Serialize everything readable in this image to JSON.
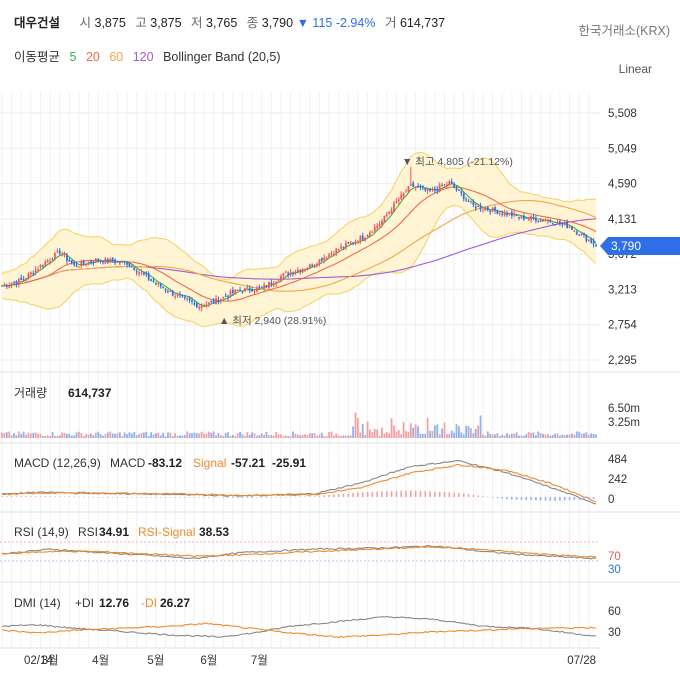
{
  "header": {
    "name": "대우건설",
    "open_label": "시",
    "open": "3,875",
    "high_label": "고",
    "high": "3,875",
    "low_label": "저",
    "low": "3,765",
    "close_label": "종",
    "close": "3,790",
    "change_arrow": "▼",
    "change": "115",
    "change_pct": "-2.94%",
    "volume_label": "거",
    "volume": "614,737",
    "exchange": "한국거래소(KRX)"
  },
  "ma_legend": {
    "title": "이동평균",
    "ma5": "5",
    "ma20": "20",
    "ma60": "60",
    "ma120": "120",
    "bollinger": "Bollinger Band (20,5)"
  },
  "scale_button": "Linear",
  "colors": {
    "up": "#f0575a",
    "down": "#2e6ee8",
    "ma5": "#35b246",
    "ma20": "#ef6b4a",
    "ma60": "#f5a44a",
    "ma120": "#a35bd6",
    "band_fill": "#fff5d4",
    "band_line": "#f5d46a",
    "price_tag": "#2e6ee8"
  },
  "price_axis": {
    "ticks": [
      "5,508",
      "5,049",
      "4,590",
      "4,131",
      "3,672",
      "3,213",
      "2,754",
      "2,295"
    ],
    "current": "3,790"
  },
  "annotations": {
    "high": "▼ 최고 4,805 (-21.12%)",
    "low": "▲ 최저 2,940 (28.91%)"
  },
  "volume_panel": {
    "label": "거래량",
    "value": "614,737",
    "ticks": [
      "6.50m",
      "3.25m"
    ]
  },
  "macd_panel": {
    "label": "MACD (12,26,9)",
    "macd_label": "MACD",
    "macd": "-83.12",
    "signal_label": "Signal",
    "signal": "-57.21",
    "hist": "-25.91",
    "ticks": [
      "484",
      "242",
      "0"
    ]
  },
  "rsi_panel": {
    "label": "RSI (14,9)",
    "rsi_label": "RSI",
    "rsi": "34.91",
    "signal_label": "RSI-Signal",
    "signal": "38.53",
    "ticks": [
      "70",
      "30"
    ]
  },
  "dmi_panel": {
    "label": "DMI (14)",
    "pdi_label": "+DI",
    "pdi": "12.76",
    "mdi_label": "-DI",
    "mdi": "26.27",
    "ticks": [
      "60",
      "30"
    ]
  },
  "x_axis": {
    "labels": [
      "02/14",
      "3월",
      "4월",
      "5월",
      "6월",
      "7월",
      "07/28"
    ]
  },
  "chart_data": {
    "type": "candlestick",
    "title": "대우건설",
    "x_labels": [
      "02/14",
      "3월",
      "4월",
      "5월",
      "6월",
      "7월",
      "07/28"
    ],
    "price_ylim": [
      2295,
      5508
    ],
    "price_anchors": [
      [
        0,
        3260
      ],
      [
        8,
        3330
      ],
      [
        16,
        3520
      ],
      [
        24,
        3700
      ],
      [
        30,
        3520
      ],
      [
        40,
        3600
      ],
      [
        52,
        3560
      ],
      [
        62,
        3330
      ],
      [
        72,
        3140
      ],
      [
        82,
        3000
      ],
      [
        88,
        3050
      ],
      [
        98,
        3200
      ],
      [
        108,
        3230
      ],
      [
        118,
        3420
      ],
      [
        128,
        3520
      ],
      [
        138,
        3710
      ],
      [
        150,
        3890
      ],
      [
        158,
        4100
      ],
      [
        164,
        4350
      ],
      [
        170,
        4560
      ],
      [
        178,
        4480
      ],
      [
        186,
        4600
      ],
      [
        196,
        4300
      ],
      [
        206,
        4230
      ],
      [
        216,
        4150
      ],
      [
        226,
        4120
      ],
      [
        236,
        4030
      ],
      [
        247,
        3790
      ]
    ],
    "price_high": 4805,
    "price_low": 2940,
    "last_close": 3790,
    "volume_ylim": [
      0,
      6500000
    ],
    "last_volume": 614737,
    "macd_ylim": [
      -100,
      484
    ],
    "macd_anchors": [
      [
        0,
        40
      ],
      [
        20,
        60
      ],
      [
        50,
        40
      ],
      [
        80,
        30
      ],
      [
        100,
        10
      ],
      [
        130,
        40
      ],
      [
        150,
        180
      ],
      [
        170,
        380
      ],
      [
        190,
        450
      ],
      [
        210,
        300
      ],
      [
        230,
        100
      ],
      [
        247,
        -83
      ]
    ],
    "macd_signal_anchors": [
      [
        0,
        30
      ],
      [
        20,
        50
      ],
      [
        50,
        45
      ],
      [
        80,
        35
      ],
      [
        100,
        20
      ],
      [
        130,
        30
      ],
      [
        150,
        120
      ],
      [
        170,
        300
      ],
      [
        190,
        400
      ],
      [
        210,
        330
      ],
      [
        230,
        150
      ],
      [
        247,
        -57
      ]
    ],
    "rsi_ylim": [
      0,
      100
    ],
    "rsi_anchors": [
      [
        0,
        45
      ],
      [
        20,
        55
      ],
      [
        40,
        48
      ],
      [
        60,
        42
      ],
      [
        80,
        35
      ],
      [
        100,
        48
      ],
      [
        130,
        55
      ],
      [
        160,
        58
      ],
      [
        180,
        62
      ],
      [
        200,
        50
      ],
      [
        220,
        42
      ],
      [
        247,
        35
      ]
    ],
    "rsi_signal_anchors": [
      [
        0,
        45
      ],
      [
        20,
        50
      ],
      [
        40,
        50
      ],
      [
        60,
        45
      ],
      [
        80,
        40
      ],
      [
        100,
        43
      ],
      [
        130,
        50
      ],
      [
        160,
        56
      ],
      [
        180,
        60
      ],
      [
        200,
        54
      ],
      [
        220,
        46
      ],
      [
        247,
        38
      ]
    ],
    "dmi_ylim": [
      0,
      70
    ],
    "pdi_anchors": [
      [
        0,
        28
      ],
      [
        15,
        30
      ],
      [
        30,
        25
      ],
      [
        50,
        20
      ],
      [
        70,
        15
      ],
      [
        90,
        12
      ],
      [
        105,
        18
      ],
      [
        120,
        28
      ],
      [
        140,
        35
      ],
      [
        160,
        42
      ],
      [
        180,
        38
      ],
      [
        200,
        28
      ],
      [
        220,
        25
      ],
      [
        247,
        13
      ]
    ],
    "mdi_anchors": [
      [
        0,
        22
      ],
      [
        15,
        18
      ],
      [
        30,
        22
      ],
      [
        50,
        25
      ],
      [
        70,
        28
      ],
      [
        85,
        32
      ],
      [
        100,
        26
      ],
      [
        120,
        18
      ],
      [
        140,
        12
      ],
      [
        160,
        15
      ],
      [
        180,
        20
      ],
      [
        200,
        22
      ],
      [
        220,
        25
      ],
      [
        247,
        26
      ]
    ]
  }
}
